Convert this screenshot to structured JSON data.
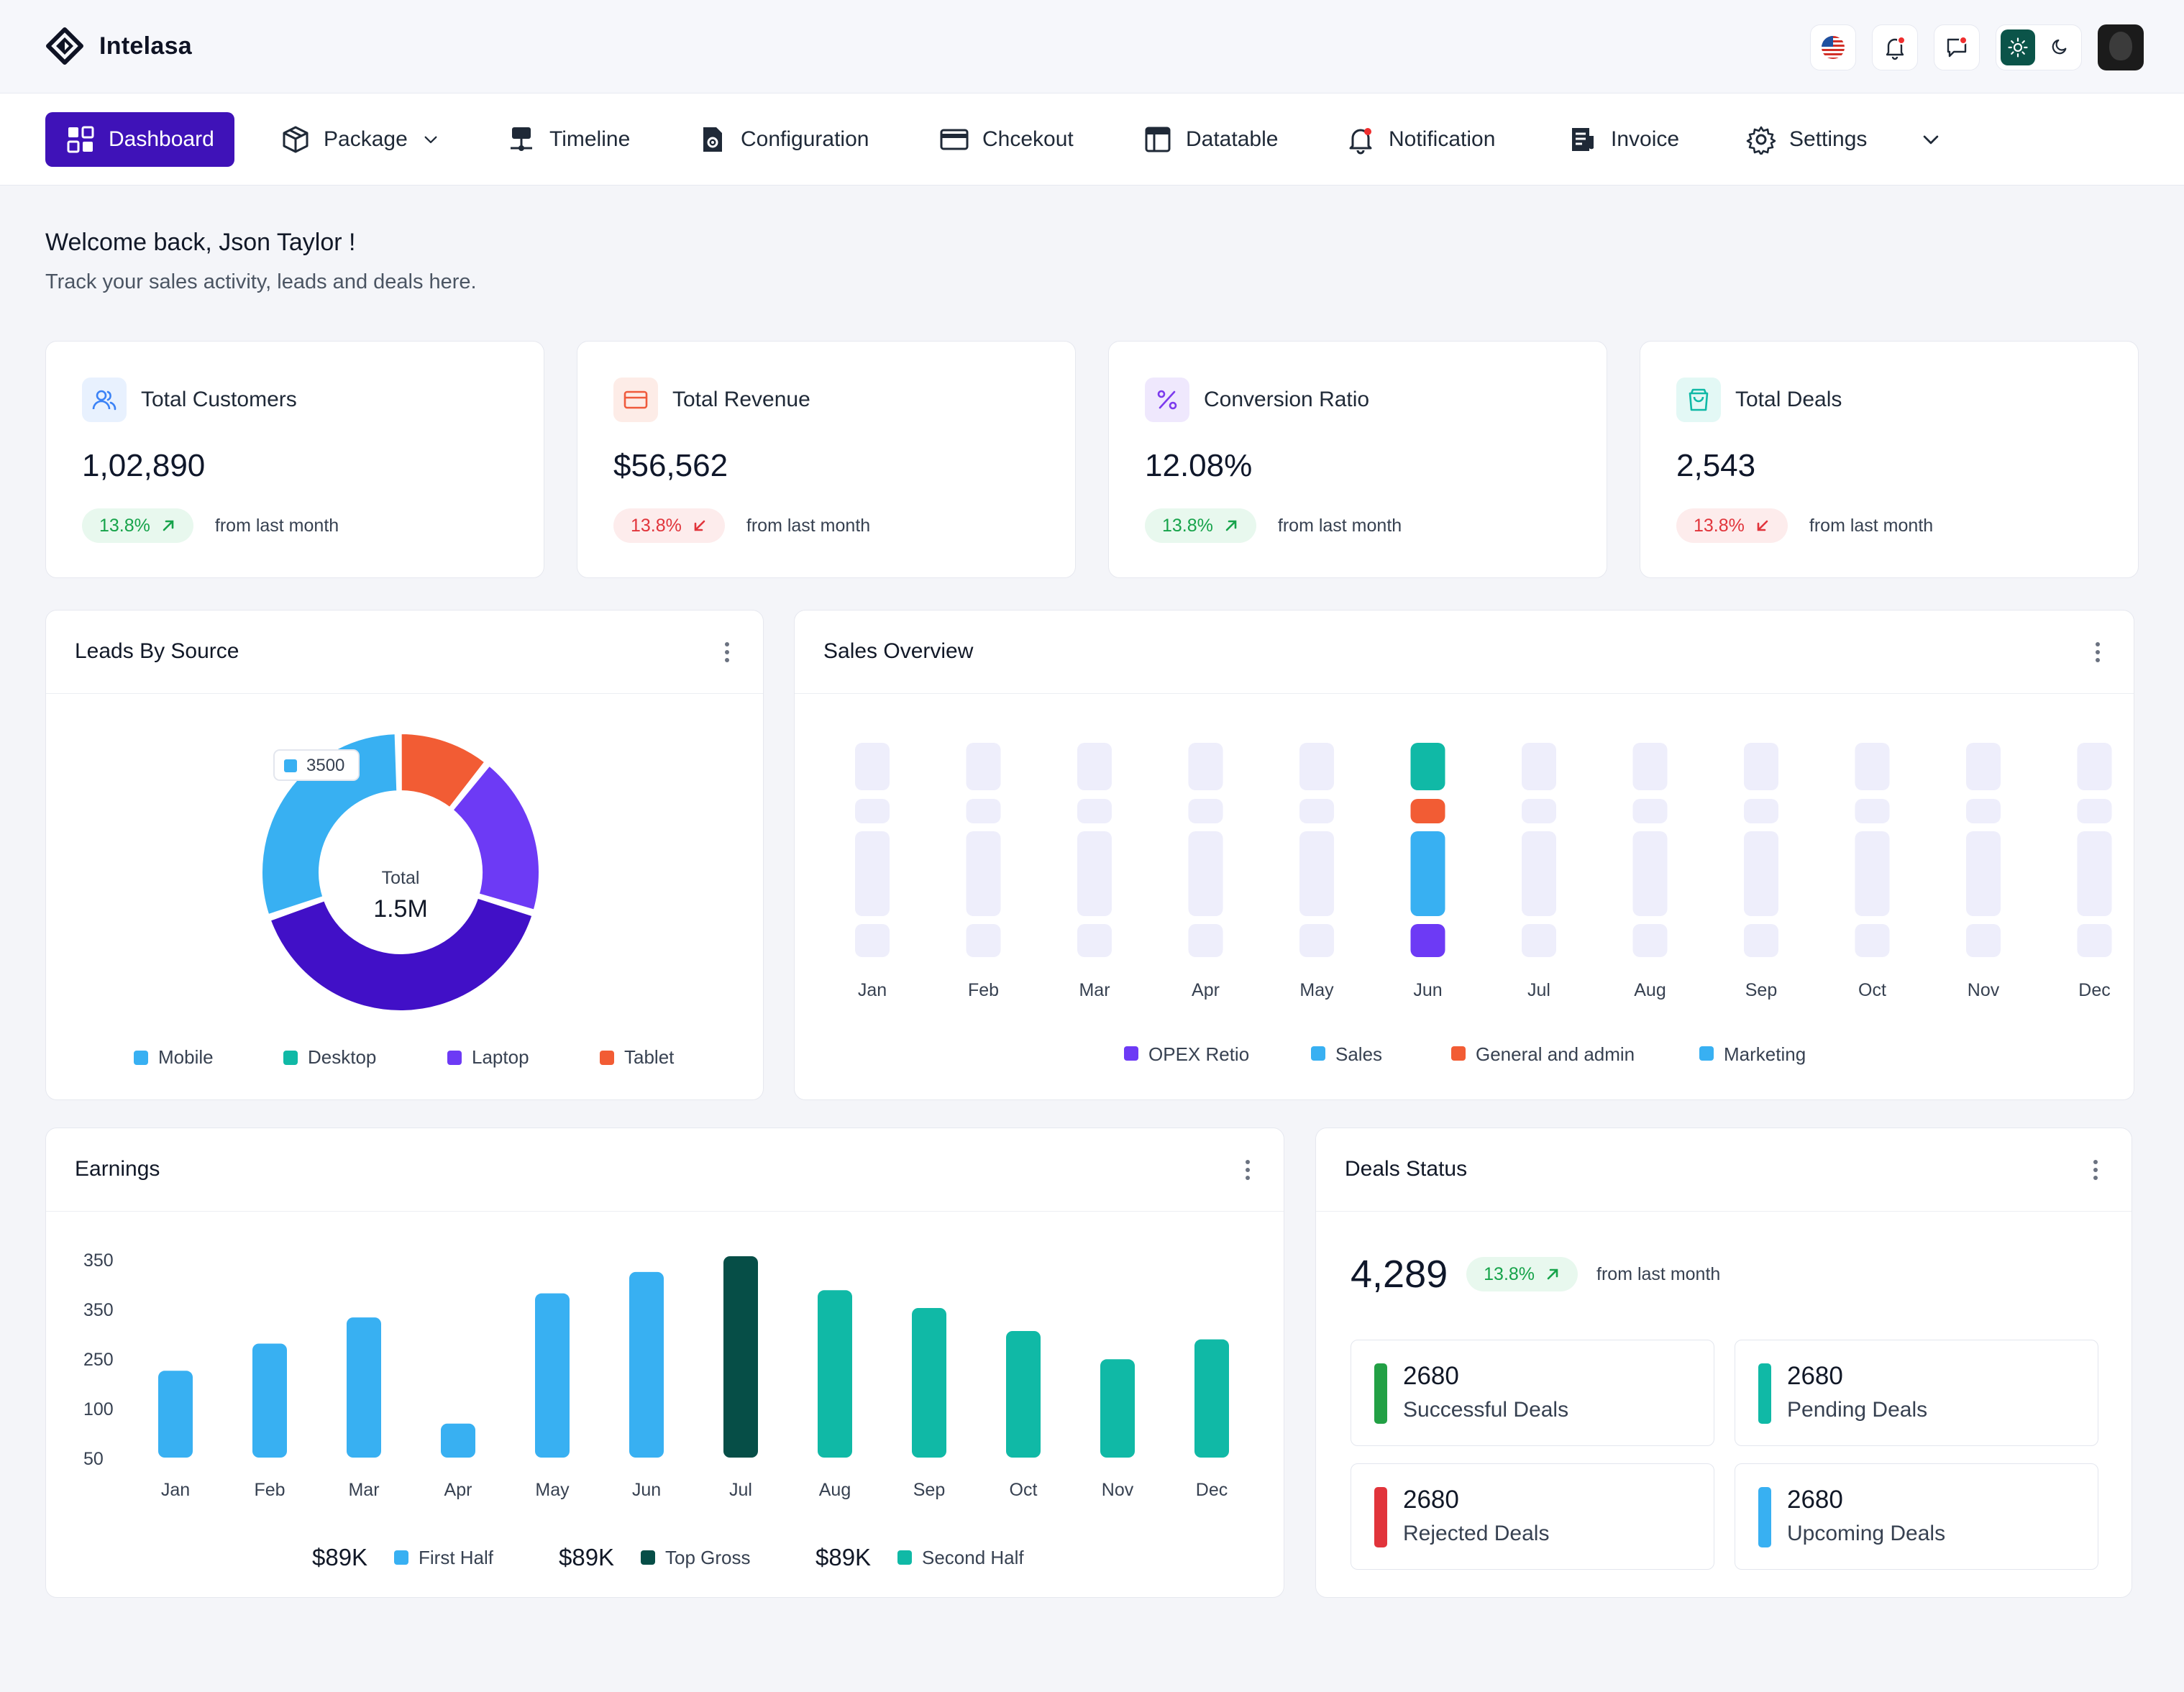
{
  "app": {
    "name": "Intelasa"
  },
  "nav": [
    {
      "key": "dashboard",
      "label": "Dashboard",
      "icon": "dashboard-grid-icon",
      "active": true
    },
    {
      "key": "package",
      "label": "Package",
      "icon": "package-box-icon"
    },
    {
      "key": "timeline",
      "label": "Timeline",
      "icon": "timeline-icon"
    },
    {
      "key": "configuration",
      "label": "Configuration",
      "icon": "file-gear-icon"
    },
    {
      "key": "checkout",
      "label": "Chcekout",
      "icon": "credit-card-icon"
    },
    {
      "key": "datatable",
      "label": "Datatable",
      "icon": "table-icon"
    },
    {
      "key": "notification",
      "label": "Notification",
      "icon": "bell-icon"
    },
    {
      "key": "invoice",
      "label": "Invoice",
      "icon": "invoice-icon"
    },
    {
      "key": "settings",
      "label": "Settings",
      "icon": "gear-icon"
    }
  ],
  "welcome": {
    "title": "Welcome back, Json Taylor !",
    "subtitle": "Track your sales activity, leads and deals here."
  },
  "stats": [
    {
      "title": "Total Customers",
      "value": "1,02,890",
      "change": "13.8%",
      "trend": "up",
      "suffix": "from last month",
      "icon": "users-icon",
      "icon_color": "#3B82F6",
      "icon_bg": "#E8F1FE"
    },
    {
      "title": "Total Revenue",
      "value": "$56,562",
      "change": "13.8%",
      "trend": "down",
      "suffix": "from last month",
      "icon": "card-icon",
      "icon_color": "#EF5A3C",
      "icon_bg": "#FDECE7"
    },
    {
      "title": "Conversion Ratio",
      "value": "12.08%",
      "change": "13.8%",
      "trend": "up",
      "suffix": "from last month",
      "icon": "percent-icon",
      "icon_color": "#7C3AED",
      "icon_bg": "#EFE8FD"
    },
    {
      "title": "Total Deals",
      "value": "2,543",
      "change": "13.8%",
      "trend": "down",
      "suffix": "from last month",
      "icon": "shopping-bag-icon",
      "icon_color": "#10B9A6",
      "icon_bg": "#E3F8F5"
    }
  ],
  "leads": {
    "title": "Leads By Source",
    "center_label": "Total",
    "center_value": "1.5M",
    "tooltip_value": "3500",
    "chart_data": {
      "type": "pie",
      "slices": [
        {
          "name": "Mobile",
          "value": 30,
          "color": "#38B0F2"
        },
        {
          "name": "Tablet",
          "value": 11,
          "color": "#F25C34"
        },
        {
          "name": "Laptop",
          "value": 19,
          "color": "#6D3AF5"
        },
        {
          "name": "Desktop",
          "value": 40,
          "color": "#4110C7"
        }
      ]
    },
    "legend": [
      {
        "name": "Mobile",
        "color": "#38B0F2"
      },
      {
        "name": "Desktop",
        "color": "#10B9A6"
      },
      {
        "name": "Laptop",
        "color": "#6D3AF5"
      },
      {
        "name": "Tablet",
        "color": "#F25C34"
      }
    ]
  },
  "sales": {
    "title": "Sales Overview",
    "chart_data": {
      "type": "bar",
      "categories": [
        "Jan",
        "Feb",
        "Mar",
        "Apr",
        "May",
        "Jun",
        "Jul",
        "Aug",
        "Sep",
        "Oct",
        "Nov",
        "Dec"
      ],
      "highlighted": "Jun",
      "series": [
        {
          "name": "OPEX Retio",
          "color": "#6D3AF5"
        },
        {
          "name": "Sales",
          "color": "#38B0F2"
        },
        {
          "name": "General and admin",
          "color": "#F25C34"
        },
        {
          "name": "Marketing",
          "color": "#38B0F2"
        }
      ]
    }
  },
  "earnings": {
    "title": "Earnings",
    "chart_data": {
      "type": "bar",
      "categories": [
        "Jan",
        "Feb",
        "Mar",
        "Apr",
        "May",
        "Jun",
        "Jul",
        "Aug",
        "Sep",
        "Oct",
        "Nov",
        "Dec"
      ],
      "ytick_labels": [
        "350",
        "350",
        "250",
        "100",
        "50"
      ],
      "values": [
        166,
        218,
        268,
        65,
        314,
        355,
        385,
        320,
        286,
        242,
        188,
        226
      ],
      "colors": [
        "#38B0F2",
        "#38B0F2",
        "#38B0F2",
        "#38B0F2",
        "#38B0F2",
        "#38B0F2",
        "#064E47",
        "#10B9A6",
        "#10B9A6",
        "#10B9A6",
        "#10B9A6",
        "#10B9A6"
      ]
    },
    "summary": [
      {
        "amount": "$89K",
        "label": "First Half",
        "color": "#38B0F2"
      },
      {
        "amount": "$89K",
        "label": "Top Gross",
        "color": "#064E47"
      },
      {
        "amount": "$89K",
        "label": "Second Half",
        "color": "#10B9A6"
      }
    ]
  },
  "deals": {
    "title": "Deals Status",
    "total": "4,289",
    "change": "13.8%",
    "suffix": "from last month",
    "items": [
      {
        "value": "2680",
        "label": "Successful Deals",
        "color": "#22A045"
      },
      {
        "value": "2680",
        "label": "Pending Deals",
        "color": "#10B9A6"
      },
      {
        "value": "2680",
        "label": "Rejected Deals",
        "color": "#E1343B"
      },
      {
        "value": "2680",
        "label": "Upcoming Deals",
        "color": "#38B0F2"
      }
    ]
  }
}
